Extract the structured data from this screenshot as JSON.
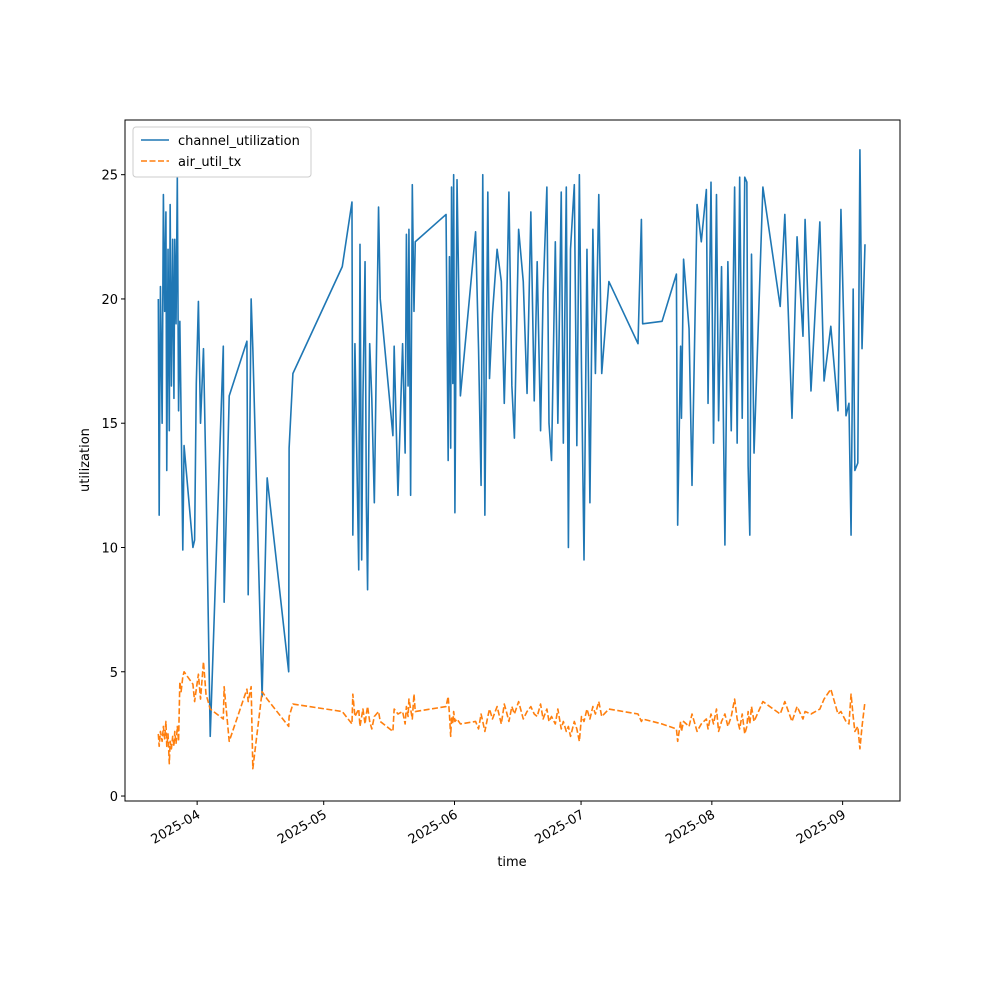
{
  "chart_data": {
    "type": "line",
    "xlabel": "time",
    "ylabel": "utilization",
    "x": [
      -9.2,
      -9.0,
      -8.7,
      -8.3,
      -8.0,
      -7.7,
      -7.4,
      -7.2,
      -6.9,
      -6.6,
      -6.4,
      -6.1,
      -5.8,
      -5.5,
      -5.3,
      -5.0,
      -4.7,
      -4.4,
      -4.1,
      -3.8,
      -3.4,
      -3.1,
      -1.0,
      -0.6,
      -0.2,
      0.3,
      0.8,
      1.5,
      2.1,
      3.1,
      6.2,
      6.4,
      7.6,
      11.8,
      12.1,
      12.8,
      13.2,
      15.4,
      16.6,
      21.7,
      21.8,
      22.7,
      34.4,
      36.7,
      36.9,
      37.4,
      38.3,
      38.6,
      39.0,
      39.3,
      39.8,
      40.1,
      40.4,
      40.9,
      41.4,
      42.0,
      43.0,
      43.4,
      46.4,
      46.7,
      47.6,
      48.7,
      49.3,
      49.6,
      50.0,
      50.2,
      50.6,
      51.0,
      51.4,
      51.7,
      59.0,
      59.5,
      59.8,
      60.1,
      60.3,
      60.6,
      60.8,
      61.1,
      61.6,
      62.4,
      66.0,
      66.7,
      67.3,
      67.7,
      68.2,
      68.9,
      69.3,
      70.0,
      71.1,
      72.1,
      72.8,
      73.3,
      73.9,
      74.6,
      75.2,
      76.2,
      77.3,
      78.2,
      79.1,
      79.9,
      80.6,
      81.4,
      82.0,
      82.9,
      83.4,
      84.0,
      84.9,
      85.5,
      86.3,
      86.8,
      87.5,
      88.0,
      88.5,
      89.4,
      90.0,
      90.6,
      91.1,
      91.7,
      92.4,
      93.1,
      93.8,
      94.4,
      95.2,
      95.9,
      97.6,
      104.5,
      105.3,
      105.6,
      110.2,
      113.6,
      113.9,
      114.6,
      114.8,
      115.3,
      116.6,
      117.3,
      118.5,
      119.5,
      120.7,
      121.1,
      121.8,
      122.4,
      123.1,
      123.6,
      124.3,
      125.1,
      125.8,
      126.6,
      127.4,
      128.0,
      128.6,
      129.2,
      129.8,
      130.3,
      130.6,
      131.0,
      131.4,
      132.0,
      134.1,
      138.2,
      139.3,
      141.0,
      142.2,
      143.6,
      144.1,
      145.5,
      147.6,
      148.6,
      150.2,
      151.9,
      152.6,
      153.8,
      154.5,
      155.0,
      155.5,
      155.9,
      156.6,
      157.1,
      157.6,
      158.3
    ],
    "series": [
      {
        "name": "channel_utilization",
        "color": "#1f77b4",
        "dash": false,
        "values": [
          20,
          11.3,
          20.5,
          15,
          24.2,
          19.5,
          23.5,
          13.1,
          22,
          14.7,
          23.8,
          16.5,
          22.4,
          16,
          22.4,
          19,
          24.9,
          15.5,
          19.1,
          15.3,
          9.9,
          14.1,
          10,
          10.3,
          16.6,
          19.9,
          15,
          18,
          12.7,
          2.4,
          18.1,
          7.8,
          16.1,
          18.3,
          8.1,
          20,
          18,
          4,
          12.8,
          5,
          14,
          17,
          21.3,
          23.9,
          10.5,
          18.2,
          9.1,
          22.2,
          9.5,
          16,
          21.5,
          11.9,
          8.3,
          18.2,
          16,
          11.8,
          23.7,
          20,
          14.5,
          18.1,
          12.1,
          18.2,
          13.8,
          22.6,
          16.5,
          22.8,
          12.1,
          24.6,
          19.5,
          22.3,
          23.4,
          13.5,
          21.7,
          14,
          24.5,
          16.6,
          25,
          11.4,
          24.8,
          16.1,
          22.7,
          18,
          12.5,
          25,
          11.3,
          24.3,
          16.8,
          19.4,
          22,
          20.7,
          15.8,
          19.1,
          24.3,
          16.5,
          14.4,
          22.8,
          20.7,
          16.2,
          23.5,
          15.9,
          21.5,
          14.7,
          20.2,
          24.5,
          15,
          13.5,
          22.3,
          15,
          24.3,
          14.2,
          24.5,
          10,
          22,
          24.6,
          14.1,
          25,
          17.2,
          9.5,
          22,
          11.8,
          22.8,
          17,
          24.2,
          17,
          20.7,
          18.2,
          23.2,
          19,
          19.1,
          21,
          10.9,
          18.1,
          15.2,
          21.6,
          18.8,
          12.5,
          23.8,
          22.3,
          24.4,
          15.8,
          24.7,
          14.2,
          24.2,
          15.1,
          21.3,
          10.1,
          21.5,
          14.7,
          24.5,
          14.2,
          24.9,
          15.2,
          24.9,
          24.7,
          13.3,
          10.5,
          21.8,
          13.8,
          24.5,
          19.7,
          23.4,
          15.2,
          22.5,
          18.5,
          23.2,
          16.3,
          23.1,
          16.7,
          18.9,
          15.5,
          23.6,
          15.3,
          15.8,
          10.5,
          20.4,
          13.1,
          13.4,
          26,
          18,
          22.2
        ]
      },
      {
        "name": "air_util_tx",
        "color": "#ff7f0e",
        "dash": true,
        "values": [
          2.5,
          2.0,
          2.6,
          2.2,
          2.8,
          2.3,
          3.0,
          2.0,
          2.5,
          1.3,
          2.2,
          1.9,
          2.4,
          2.0,
          2.6,
          2.1,
          2.8,
          2.2,
          4.6,
          4.2,
          4.8,
          5.0,
          4.5,
          3.8,
          4.3,
          4.9,
          3.9,
          5.4,
          4.1,
          3.5,
          3.1,
          4.4,
          2.2,
          4.3,
          3.8,
          4.4,
          1.1,
          4.2,
          3.9,
          2.8,
          3.2,
          3.7,
          3.4,
          2.9,
          4.1,
          3.2,
          3.5,
          2.8,
          3.2,
          3.5,
          2.9,
          3.3,
          3.6,
          3.0,
          2.7,
          3.2,
          3.4,
          3.0,
          2.6,
          3.5,
          3.3,
          3.4,
          2.9,
          3.6,
          3.2,
          3.9,
          3.5,
          3.1,
          4.1,
          3.4,
          3.6,
          4.0,
          3.3,
          2.4,
          3.2,
          2.9,
          3.4,
          3.0,
          3.1,
          2.9,
          3.0,
          2.7,
          3.3,
          3.0,
          2.6,
          3.2,
          3.5,
          3.1,
          3.6,
          2.9,
          3.7,
          3.4,
          3.0,
          3.6,
          3.3,
          3.8,
          3.1,
          3.4,
          3.6,
          3.3,
          3.2,
          3.7,
          3.1,
          3.5,
          3.0,
          3.2,
          2.9,
          3.5,
          2.7,
          3.0,
          2.6,
          2.8,
          2.4,
          3.0,
          2.7,
          2.2,
          3.2,
          3.0,
          3.5,
          3.1,
          3.6,
          3.3,
          3.8,
          3.2,
          3.5,
          3.3,
          3.0,
          3.1,
          2.9,
          2.7,
          2.2,
          3.0,
          2.6,
          3.0,
          2.8,
          3.3,
          2.6,
          2.9,
          3.1,
          2.7,
          3.3,
          2.9,
          3.5,
          2.6,
          3.0,
          3.3,
          2.8,
          3.2,
          3.9,
          3.1,
          2.7,
          3.3,
          2.5,
          2.8,
          3.4,
          2.9,
          3.6,
          3.0,
          3.8,
          3.3,
          3.8,
          3.0,
          3.6,
          3.1,
          3.4,
          3.3,
          3.5,
          3.9,
          4.3,
          3.3,
          3.4,
          3.0,
          2.9,
          4.1,
          3.2,
          2.6,
          2.8,
          1.9,
          2.8,
          3.8
        ]
      }
    ],
    "xlim": [
      -17.1,
      166.6
    ],
    "xticks": [
      {
        "value": 0,
        "label": "2025-04"
      },
      {
        "value": 30,
        "label": "2025-05"
      },
      {
        "value": 61,
        "label": "2025-06"
      },
      {
        "value": 91,
        "label": "2025-07"
      },
      {
        "value": 122,
        "label": "2025-08"
      },
      {
        "value": 153,
        "label": "2025-09"
      }
    ],
    "ylim": [
      -0.2,
      27.2
    ],
    "yticks": [
      0,
      5,
      10,
      15,
      20,
      25
    ],
    "legend": "upper left"
  }
}
